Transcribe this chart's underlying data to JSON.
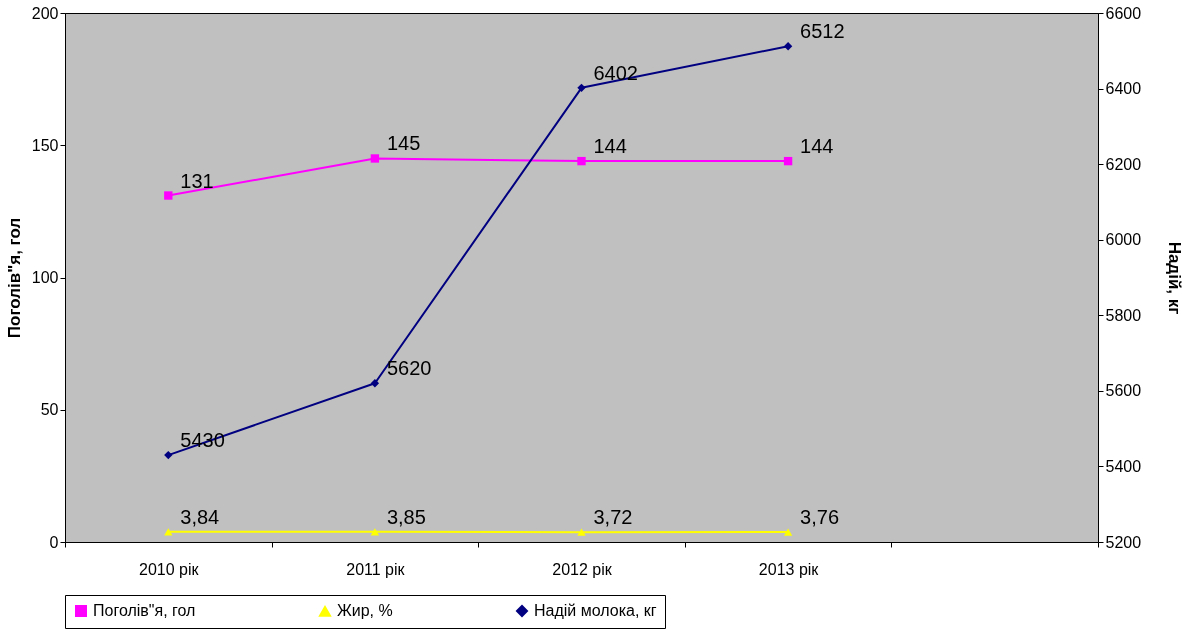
{
  "chart_data": {
    "type": "line",
    "categories": [
      "2010 рік",
      "2011 рік",
      "2012 рік",
      "2013 рік",
      null
    ],
    "ylabel": "Поголів\"я, гол",
    "y2label": "Надій, кг",
    "ylim": [
      0,
      200
    ],
    "yticks": [
      0,
      50,
      100,
      150,
      200
    ],
    "y2lim": [
      5200,
      6600
    ],
    "y2ticks": [
      5200,
      5400,
      5600,
      5800,
      6000,
      6200,
      6400,
      6600
    ],
    "series": [
      {
        "name": "Поголів\"я, гол",
        "color": "#ff00ff",
        "marker": "square",
        "values": [
          131,
          145,
          144,
          144,
          null
        ]
      },
      {
        "name": "Жир, %",
        "color": "#ffff00",
        "marker": "triangle",
        "values": [
          3.84,
          3.85,
          3.72,
          3.76,
          null
        ],
        "value_labels": [
          "3,84",
          "3,85",
          "3,72",
          "3,76",
          null
        ]
      },
      {
        "name": "Надій молока, кг",
        "color": "#000080",
        "marker": "diamond",
        "axis": "y2",
        "values": [
          5430,
          5620,
          6402,
          6512,
          null
        ]
      }
    ],
    "data_labels": true,
    "grid": false,
    "legend": "bottom"
  }
}
